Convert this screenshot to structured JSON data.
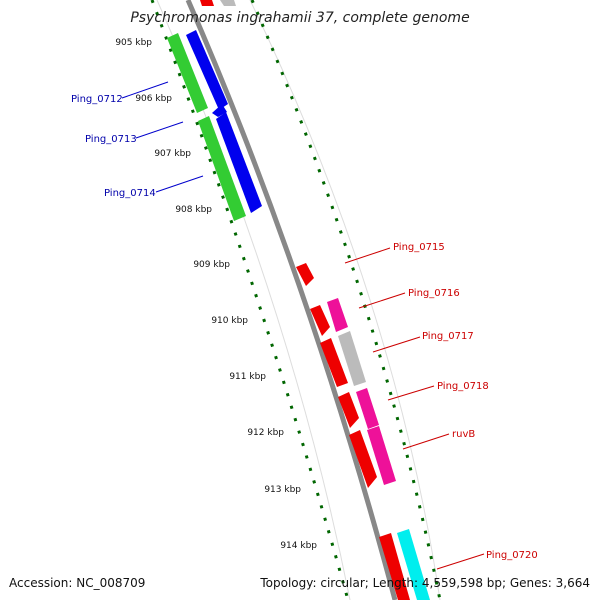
{
  "title": "Psychromonas ingrahamii 37, complete genome",
  "footer": {
    "accession": "Accession: NC_008709",
    "summary": "Topology: circular; Length: 4,559,598 bp; Genes: 3,664"
  },
  "ruler": {
    "ticks": [
      "905 kbp",
      "906 kbp",
      "907 kbp",
      "908 kbp",
      "909 kbp",
      "910 kbp",
      "911 kbp",
      "912 kbp",
      "913 kbp",
      "914 kbp"
    ]
  },
  "gene_labels_left": [
    "Ping_0712",
    "Ping_0713",
    "Ping_0714"
  ],
  "gene_labels_right": [
    "Ping_0715",
    "Ping_0716",
    "Ping_0717",
    "Ping_0718",
    "ruvB",
    "Ping_0720"
  ],
  "colors": {
    "green": "#33cc33",
    "blue": "#0000ee",
    "red": "#ee0000",
    "magenta": "#ee1199",
    "gray": "#bbbbbb",
    "cyan": "#00eeee",
    "backbone": "#888888",
    "dots": "#006600"
  }
}
